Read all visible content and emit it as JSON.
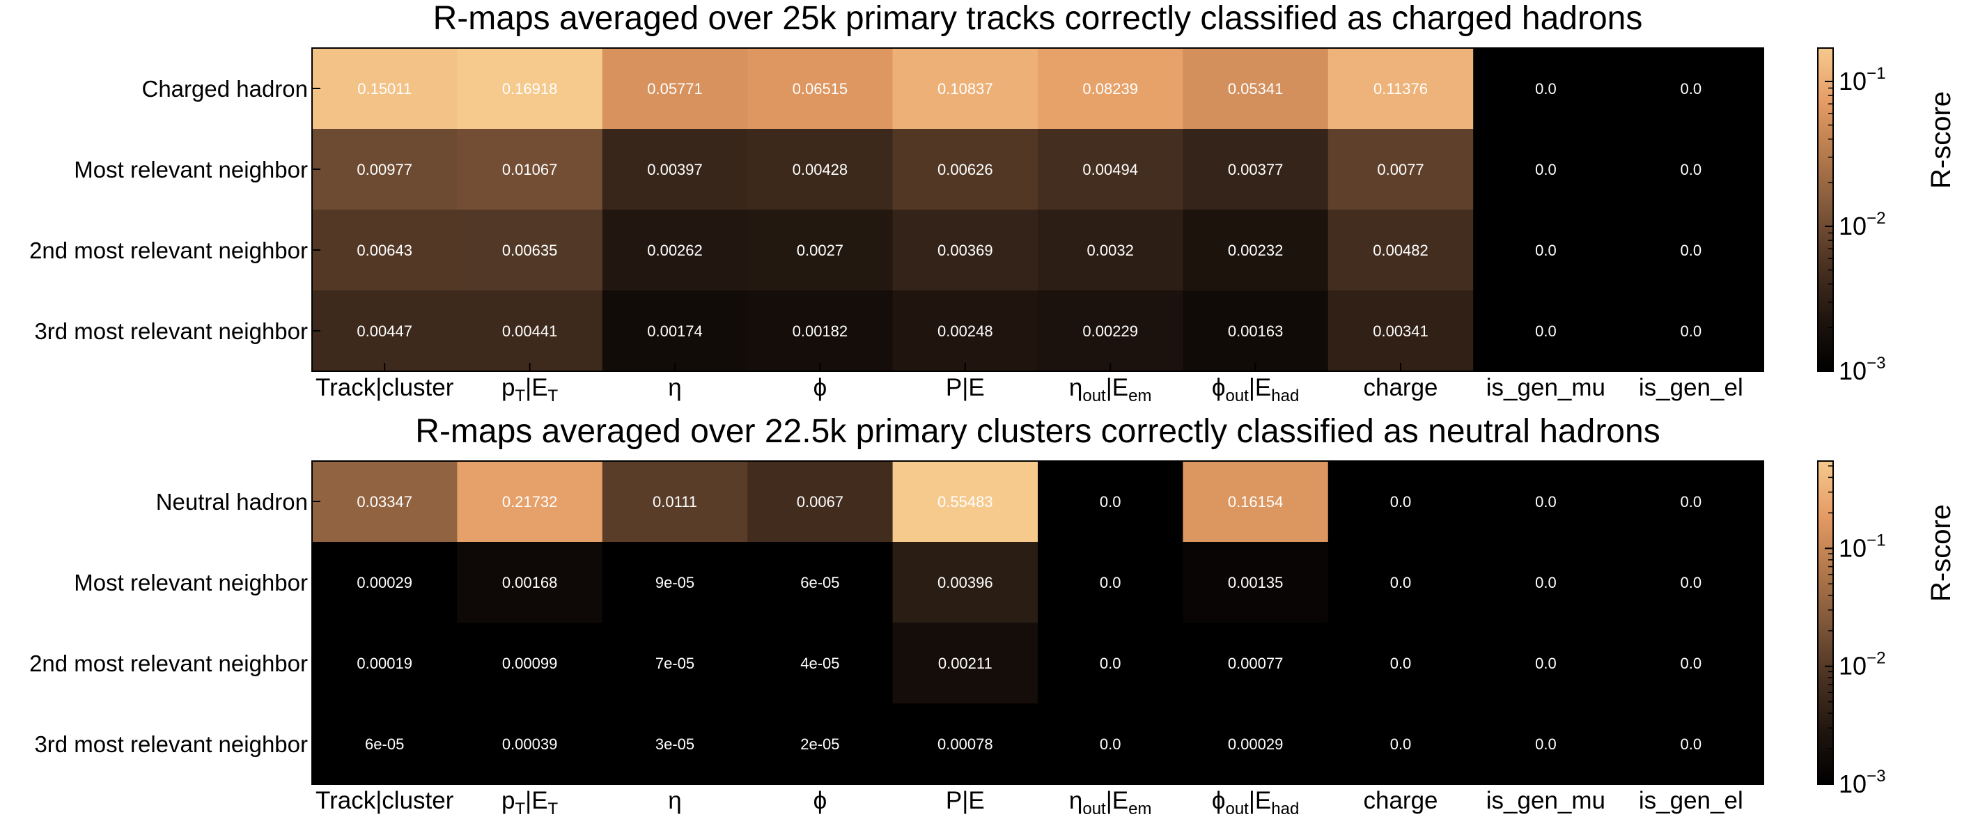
{
  "colors": {
    "cmap": [
      "#000000",
      "#1c130d",
      "#4a3222",
      "#7f573a",
      "#b47a4c",
      "#e49b64",
      "#f6c98d"
    ],
    "text": "#ffffff",
    "axis": "#000000"
  },
  "colorbar": {
    "label": "R-score",
    "ticks": [
      {
        "base": "10",
        "exp": "−3"
      },
      {
        "base": "10",
        "exp": "−2"
      },
      {
        "base": "10",
        "exp": "−1"
      }
    ]
  },
  "chart_data": [
    {
      "type": "heatmap",
      "title": "R-maps averaged over 25k primary tracks correctly classified as charged hadrons",
      "rows": [
        "Charged hadron",
        "Most relevant neighbor",
        "2nd most relevant neighbor",
        "3rd most relevant neighbor"
      ],
      "columns": [
        {
          "main": "Track|cluster",
          "sub1": "",
          "tail": "",
          "sub2": ""
        },
        {
          "main": "p",
          "sub1": "T",
          "tail": "|E",
          "sub2": "T"
        },
        {
          "main": "η",
          "sub1": "",
          "tail": "",
          "sub2": ""
        },
        {
          "main": "ϕ",
          "sub1": "",
          "tail": "",
          "sub2": ""
        },
        {
          "main": "P|E",
          "sub1": "",
          "tail": "",
          "sub2": ""
        },
        {
          "main": "η",
          "sub1": "out",
          "tail": "|E",
          "sub2": "em"
        },
        {
          "main": "ϕ",
          "sub1": "out",
          "tail": "|E",
          "sub2": "had"
        },
        {
          "main": "charge",
          "sub1": "",
          "tail": "",
          "sub2": ""
        },
        {
          "main": "is_gen_mu",
          "sub1": "",
          "tail": "",
          "sub2": ""
        },
        {
          "main": "is_gen_el",
          "sub1": "",
          "tail": "",
          "sub2": ""
        }
      ],
      "values": [
        [
          "0.15011",
          "0.16918",
          "0.05771",
          "0.06515",
          "0.10837",
          "0.08239",
          "0.05341",
          "0.11376",
          "0.0",
          "0.0"
        ],
        [
          "0.00977",
          "0.01067",
          "0.00397",
          "0.00428",
          "0.00626",
          "0.00494",
          "0.00377",
          "0.0077",
          "0.0",
          "0.0"
        ],
        [
          "0.00643",
          "0.00635",
          "0.00262",
          "0.0027",
          "0.00369",
          "0.0032",
          "0.00232",
          "0.00482",
          "0.0",
          "0.0"
        ],
        [
          "0.00447",
          "0.00441",
          "0.00174",
          "0.00182",
          "0.00248",
          "0.00229",
          "0.00163",
          "0.00341",
          "0.0",
          "0.0"
        ]
      ],
      "color_scale": "log",
      "vmin": 0.001,
      "vmax": 0.17,
      "colorbar_label": "R-score"
    },
    {
      "type": "heatmap",
      "title": "R-maps averaged over 22.5k primary clusters correctly classified as neutral hadrons",
      "rows": [
        "Neutral hadron",
        "Most relevant neighbor",
        "2nd most relevant neighbor",
        "3rd most relevant neighbor"
      ],
      "columns": [
        {
          "main": "Track|cluster",
          "sub1": "",
          "tail": "",
          "sub2": ""
        },
        {
          "main": "p",
          "sub1": "T",
          "tail": "|E",
          "sub2": "T"
        },
        {
          "main": "η",
          "sub1": "",
          "tail": "",
          "sub2": ""
        },
        {
          "main": "ϕ",
          "sub1": "",
          "tail": "",
          "sub2": ""
        },
        {
          "main": "P|E",
          "sub1": "",
          "tail": "",
          "sub2": ""
        },
        {
          "main": "η",
          "sub1": "out",
          "tail": "|E",
          "sub2": "em"
        },
        {
          "main": "ϕ",
          "sub1": "out",
          "tail": "|E",
          "sub2": "had"
        },
        {
          "main": "charge",
          "sub1": "",
          "tail": "",
          "sub2": ""
        },
        {
          "main": "is_gen_mu",
          "sub1": "",
          "tail": "",
          "sub2": ""
        },
        {
          "main": "is_gen_el",
          "sub1": "",
          "tail": "",
          "sub2": ""
        }
      ],
      "values": [
        [
          "0.03347",
          "0.21732",
          "0.0111",
          "0.0067",
          "0.55483",
          "0.0",
          "0.16154",
          "0.0",
          "0.0",
          "0.0"
        ],
        [
          "0.00029",
          "0.00168",
          "9e-05",
          "6e-05",
          "0.00396",
          "0.0",
          "0.00135",
          "0.0",
          "0.0",
          "0.0"
        ],
        [
          "0.00019",
          "0.00099",
          "7e-05",
          "4e-05",
          "0.00211",
          "0.0",
          "0.00077",
          "0.0",
          "0.0",
          "0.0"
        ],
        [
          "6e-05",
          "0.00039",
          "3e-05",
          "2e-05",
          "0.00078",
          "0.0",
          "0.00029",
          "0.0",
          "0.0",
          "0.0"
        ]
      ],
      "color_scale": "log",
      "vmin": 0.001,
      "vmax": 0.55,
      "colorbar_label": "R-score"
    }
  ]
}
